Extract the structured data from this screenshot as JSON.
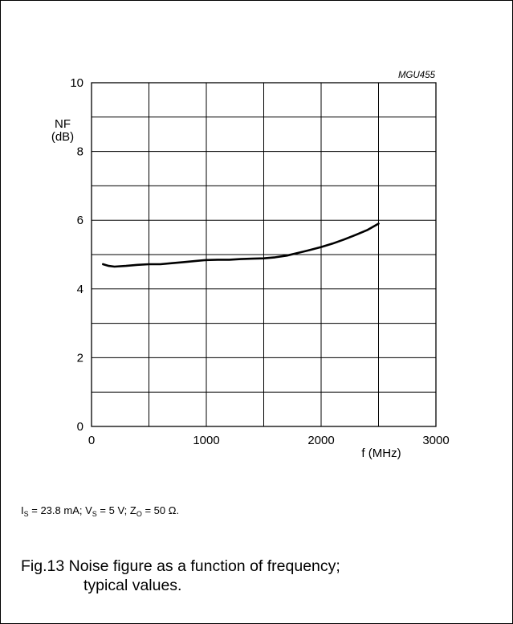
{
  "chart_data": {
    "type": "line",
    "code": "MGU455",
    "ylabel_line1": "NF",
    "ylabel_line2": "(dB)",
    "xlabel": "f (MHz)",
    "xlim": [
      0,
      3000
    ],
    "ylim": [
      0,
      10
    ],
    "x_ticks": [
      0,
      1000,
      2000,
      3000
    ],
    "y_ticks": [
      0,
      2,
      4,
      6,
      8,
      10
    ],
    "x_grid_step": 500,
    "y_grid_step": 1,
    "grid": true,
    "series": [
      {
        "x": [
          100,
          150,
          200,
          300,
          400,
          500,
          600,
          700,
          800,
          900,
          1000,
          1100,
          1200,
          1300,
          1400,
          1500,
          1600,
          1700,
          1800,
          1900,
          2000,
          2100,
          2200,
          2300,
          2400,
          2500
        ],
        "y": [
          4.72,
          4.67,
          4.65,
          4.67,
          4.7,
          4.72,
          4.72,
          4.75,
          4.78,
          4.81,
          4.84,
          4.85,
          4.85,
          4.87,
          4.88,
          4.89,
          4.92,
          4.97,
          5.05,
          5.13,
          5.22,
          5.32,
          5.44,
          5.57,
          5.71,
          5.9
        ]
      }
    ]
  },
  "conditions": {
    "is_sym": "I",
    "is_sub": "S",
    "is_val": " = 23.8 mA; ",
    "vs_sym": "V",
    "vs_sub": "S",
    "vs_val": " = 5 V; ",
    "zo_sym": "Z",
    "zo_sub": "O",
    "zo_val": " = 50 Ω."
  },
  "caption": {
    "line1": "Fig.13  Noise figure as a function of frequency;",
    "line2": "typical values."
  }
}
